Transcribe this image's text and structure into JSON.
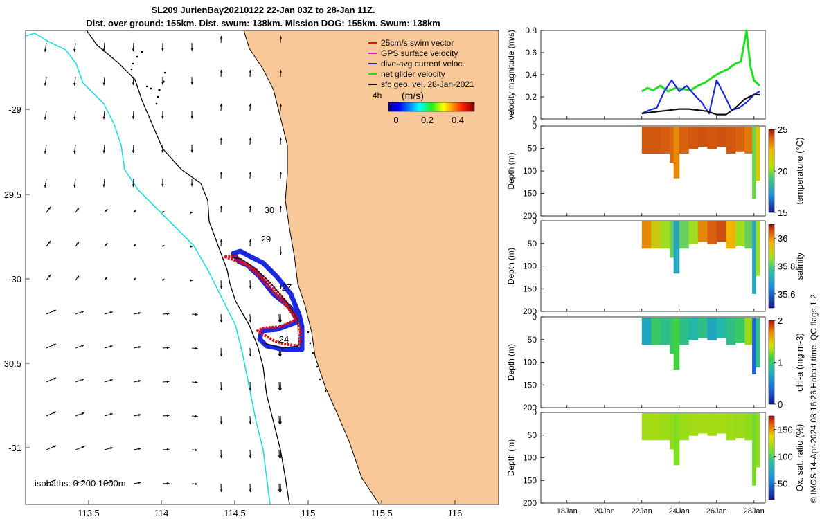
{
  "header": {
    "title_line1": "SL209 JurienBay20210122 22-Jan 03Z to 28-Jan 11Z.",
    "title_line2": "Dist. over ground: 155km. Dist. swum: 138km. Mission DOG: 155km. Swum: 138km"
  },
  "colors": {
    "land": "#f9c899",
    "sea": "#ffffff",
    "coast_cyan": "#22dddd",
    "track_red": "#e01010",
    "track_blue": "#1a28e0",
    "track_green": "#22dd22",
    "current_black": "#111111",
    "gps_magenta": "#e010e0"
  },
  "map": {
    "legend": [
      {
        "label": "25cm/s swim vector",
        "color": "#e01010"
      },
      {
        "label": "GPS surface velocity",
        "color": "#e010e0"
      },
      {
        "label": "dive-avg current veloc.",
        "color": "#1a28e0"
      },
      {
        "label": "net glider velocity",
        "color": "#22dd22"
      },
      {
        "label": "sfc geo. vel. 28-Jan-2021",
        "color": "#111111"
      }
    ],
    "scale_label": "4h",
    "colorbar_title": "(m/s)",
    "colorbar_ticks": [
      "0",
      "0.2",
      "0.4"
    ],
    "day_labels": [
      "30",
      "29",
      "27",
      "24"
    ],
    "isobath_label": "isobaths: 0   200  1000m",
    "lon_ticks": [
      "113.5",
      "114",
      "114.5",
      "115",
      "115.5",
      "116"
    ],
    "lat_ticks": [
      "-29",
      "29.5",
      "-30",
      "30.5",
      "-31"
    ]
  },
  "chart_data": [
    {
      "type": "line",
      "ylabel": "velocity magnitude (m/s)",
      "ylim": [
        0,
        0.8
      ],
      "y_ticks": [
        "0",
        "0.2",
        "0.4",
        "0.6",
        "0.8"
      ],
      "x_ticks": [
        "18Jan",
        "20Jan",
        "22Jan",
        "24Jan",
        "26Jan",
        "28Jan"
      ],
      "series": [
        {
          "name": "net glider velocity",
          "color": "#22dd22",
          "x": [
            22.0,
            22.3,
            22.6,
            23.0,
            23.4,
            23.8,
            24.2,
            24.6,
            25.0,
            25.4,
            25.8,
            26.2,
            26.6,
            27.0,
            27.3,
            27.6,
            27.8,
            28.0,
            28.3
          ],
          "y": [
            0.25,
            0.28,
            0.26,
            0.3,
            0.25,
            0.28,
            0.27,
            0.26,
            0.3,
            0.33,
            0.38,
            0.42,
            0.45,
            0.5,
            0.52,
            0.8,
            0.48,
            0.35,
            0.3
          ]
        },
        {
          "name": "dive-avg current veloc.",
          "color": "#1a28e0",
          "x": [
            22.0,
            22.4,
            22.8,
            23.2,
            23.6,
            24.0,
            24.4,
            24.8,
            25.2,
            25.6,
            26.0,
            26.4,
            26.8,
            27.2,
            27.6,
            28.0,
            28.3
          ],
          "y": [
            0.05,
            0.08,
            0.1,
            0.25,
            0.35,
            0.25,
            0.3,
            0.22,
            0.15,
            0.05,
            0.35,
            0.22,
            0.08,
            0.1,
            0.15,
            0.22,
            0.25
          ]
        },
        {
          "name": "sfc geo. vel. 28-Jan-2021",
          "color": "#111111",
          "x": [
            22.0,
            22.5,
            23.0,
            23.5,
            24.0,
            24.5,
            25.0,
            25.5,
            26.0,
            26.5,
            27.0,
            27.5,
            28.0,
            28.3
          ],
          "y": [
            0.05,
            0.06,
            0.07,
            0.08,
            0.09,
            0.09,
            0.08,
            0.07,
            0.04,
            0.04,
            0.1,
            0.18,
            0.22,
            0.22
          ]
        }
      ]
    },
    {
      "type": "heatmap",
      "ylabel": "Depth (m)",
      "ylim": [
        200,
        0
      ],
      "y_ticks": [
        "0",
        "50",
        "100",
        "150",
        "200"
      ],
      "colorbar_label": "temperature (°C)",
      "colorbar_ticks": [
        "25",
        "20",
        "15"
      ],
      "colorbar_range": [
        15,
        25
      ],
      "time": [
        22.0,
        22.5,
        23.0,
        23.5,
        23.7,
        24.0,
        24.5,
        25.0,
        25.5,
        26.0,
        26.5,
        27.0,
        27.5,
        27.9,
        28.1,
        28.3
      ],
      "max_depth": [
        60,
        60,
        60,
        80,
        115,
        60,
        50,
        45,
        50,
        45,
        60,
        55,
        60,
        160,
        120,
        60
      ],
      "values": [
        23.5,
        23.5,
        23.4,
        23.2,
        22.5,
        23.3,
        23.5,
        23.6,
        23.5,
        23.6,
        23.5,
        23.3,
        22.8,
        19.0,
        21.0,
        22.5
      ]
    },
    {
      "type": "heatmap",
      "ylabel": "Depth (m)",
      "ylim": [
        200,
        0
      ],
      "y_ticks": [
        "0",
        "50",
        "100",
        "150",
        "200"
      ],
      "colorbar_label": "salinity",
      "colorbar_ticks": [
        "36",
        "35.8",
        "35.6"
      ],
      "colorbar_range": [
        35.5,
        36.1
      ],
      "time": [
        22.0,
        22.5,
        23.0,
        23.5,
        23.7,
        24.0,
        24.5,
        25.0,
        25.5,
        26.0,
        26.5,
        27.0,
        27.5,
        27.9,
        28.1,
        28.3
      ],
      "max_depth": [
        60,
        60,
        60,
        80,
        115,
        60,
        50,
        45,
        50,
        45,
        60,
        55,
        60,
        160,
        120,
        60
      ],
      "values": [
        35.95,
        35.85,
        35.8,
        35.75,
        35.65,
        35.75,
        35.8,
        35.95,
        36.0,
        36.02,
        35.9,
        35.8,
        35.75,
        35.65,
        35.8,
        35.9
      ]
    },
    {
      "type": "heatmap",
      "ylabel": "Depth (m)",
      "ylim": [
        200,
        0
      ],
      "y_ticks": [
        "0",
        "50",
        "100",
        "150",
        "200"
      ],
      "colorbar_label": "chl-a (mg m-3)",
      "colorbar_ticks": [
        "2",
        "1",
        "0"
      ],
      "colorbar_range": [
        0,
        2
      ],
      "time": [
        22.0,
        22.5,
        23.0,
        23.5,
        23.7,
        24.0,
        24.5,
        25.0,
        25.5,
        26.0,
        26.5,
        27.0,
        27.5,
        27.9,
        28.1,
        28.3
      ],
      "max_depth": [
        60,
        60,
        60,
        80,
        115,
        60,
        50,
        45,
        50,
        45,
        60,
        55,
        60,
        125,
        110,
        60
      ],
      "values": [
        0.6,
        0.9,
        0.8,
        0.9,
        1.0,
        0.8,
        0.7,
        0.8,
        0.6,
        0.7,
        0.8,
        0.9,
        1.2,
        0.3,
        0.8,
        1.3
      ]
    },
    {
      "type": "heatmap",
      "ylabel": "Depth (m)",
      "ylim": [
        200,
        0
      ],
      "y_ticks": [
        "0",
        "50",
        "100",
        "150",
        "200"
      ],
      "colorbar_label": "Ox. sat. ratio (%)",
      "colorbar_ticks": [
        "150",
        "100",
        "50"
      ],
      "colorbar_range": [
        20,
        175
      ],
      "time": [
        22.0,
        22.5,
        23.0,
        23.5,
        23.7,
        24.0,
        24.5,
        25.0,
        25.5,
        26.0,
        26.5,
        27.0,
        27.5,
        27.9,
        28.1,
        28.3
      ],
      "max_depth": [
        60,
        60,
        60,
        80,
        115,
        60,
        50,
        45,
        50,
        45,
        60,
        55,
        60,
        160,
        120,
        60
      ],
      "values": [
        106,
        107,
        105,
        103,
        98,
        104,
        106,
        107,
        106,
        107,
        105,
        104,
        102,
        95,
        100,
        104
      ]
    }
  ],
  "footer": {
    "credit": "© IMOS 14-Apr-2024 08:16:26 Hobart time. QC flags 1  2"
  }
}
